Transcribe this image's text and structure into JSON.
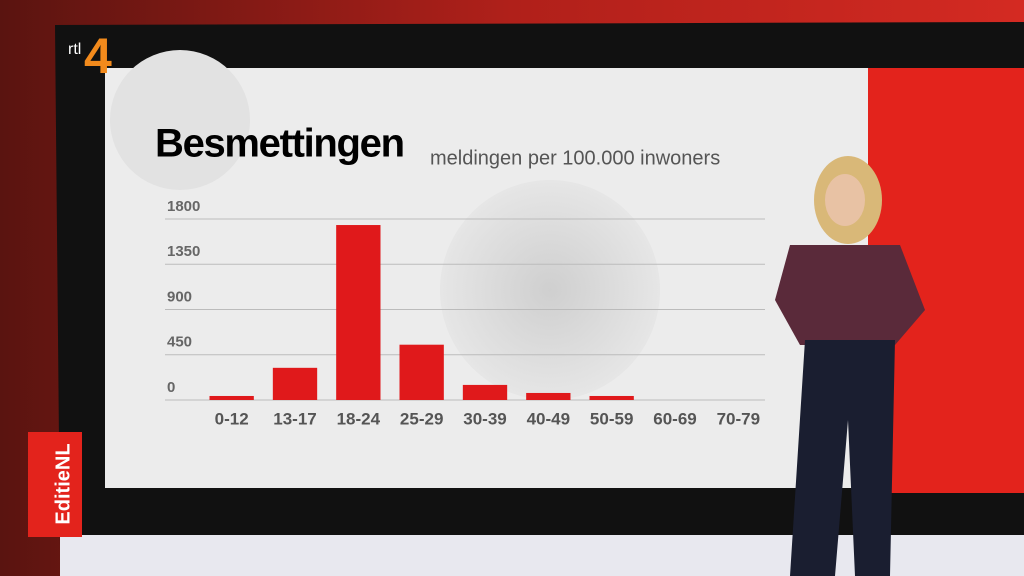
{
  "channel_logo": {
    "prefix": "rtl",
    "number": "4"
  },
  "program_logo": "EditieNL",
  "chart_data": {
    "type": "bar",
    "title": "Besmettingen",
    "subtitle": "meldingen per 100.000 inwoners",
    "categories": [
      "0-12",
      "13-17",
      "18-24",
      "25-29",
      "30-39",
      "40-49",
      "50-59",
      "60-69",
      "70-79"
    ],
    "values": [
      40,
      320,
      1740,
      550,
      150,
      70,
      40,
      0,
      0
    ],
    "color": "#e0191b",
    "ylim": [
      0,
      1800
    ],
    "yticks": [
      0,
      450,
      900,
      1350,
      1800
    ],
    "grid": true
  }
}
